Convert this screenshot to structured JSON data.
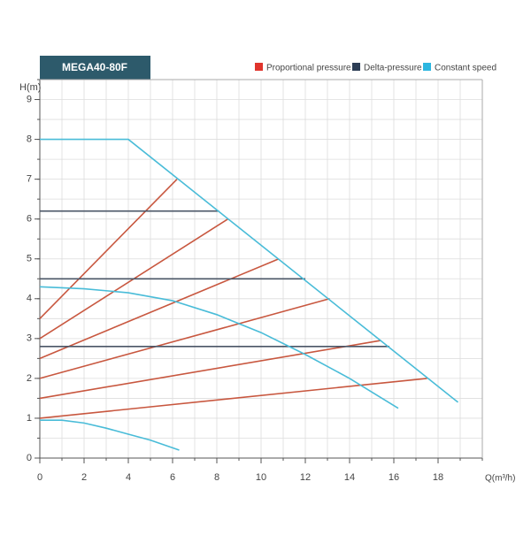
{
  "chart_data": {
    "type": "line",
    "title": "MEGA40-80F",
    "x_label": "Q(m³/h)",
    "y_label": "H(m)",
    "xlim": [
      0,
      20
    ],
    "ylim": [
      0,
      9.5
    ],
    "xticks": [
      0,
      2,
      4,
      6,
      8,
      10,
      12,
      14,
      16,
      18
    ],
    "yticks": [
      0,
      1,
      2,
      3,
      4,
      5,
      6,
      7,
      8,
      9
    ],
    "xgrid": [
      1,
      2,
      3,
      4,
      5,
      6,
      7,
      8,
      9,
      10,
      11,
      12,
      13,
      14,
      15,
      16,
      17,
      18,
      19,
      20
    ],
    "ygrid": [
      0.5,
      1,
      1.5,
      2,
      2.5,
      3,
      3.5,
      4,
      4.5,
      5,
      5.5,
      6,
      6.5,
      7,
      7.5,
      8,
      8.5,
      9,
      9.5
    ],
    "legend": [
      {
        "name": "Proportional pressure",
        "color": "#e0342c"
      },
      {
        "name": "Delta-pressure",
        "color": "#2c3d55"
      },
      {
        "name": "Constant speed",
        "color": "#2cb6e0"
      }
    ],
    "series": [
      {
        "color": "#c8573f",
        "x": [
          0,
          6.2
        ],
        "values": [
          3.5,
          7.0
        ]
      },
      {
        "color": "#c8573f",
        "x": [
          0,
          8.5
        ],
        "values": [
          3.0,
          6.0
        ]
      },
      {
        "color": "#c8573f",
        "x": [
          0,
          10.8
        ],
        "values": [
          2.5,
          5.0
        ]
      },
      {
        "color": "#c8573f",
        "x": [
          0,
          13.1
        ],
        "values": [
          2.0,
          4.0
        ]
      },
      {
        "color": "#c8573f",
        "x": [
          0,
          15.4
        ],
        "values": [
          1.5,
          2.95
        ]
      },
      {
        "color": "#c8573f",
        "x": [
          0,
          17.5
        ],
        "values": [
          1.0,
          2.0
        ]
      },
      {
        "color": "#4a5566",
        "x": [
          0,
          8.1
        ],
        "values": [
          6.2,
          6.2
        ]
      },
      {
        "color": "#4a5566",
        "x": [
          0,
          12
        ],
        "values": [
          4.5,
          4.5
        ]
      },
      {
        "color": "#4a5566",
        "x": [
          0,
          15.8
        ],
        "values": [
          2.8,
          2.8
        ]
      },
      {
        "color": "#49bcd8",
        "x": [
          0,
          4,
          18.9
        ],
        "values": [
          8,
          8,
          1.4
        ]
      },
      {
        "color": "#49bcd8",
        "x": [
          0,
          2,
          4,
          6,
          8,
          10,
          12,
          14,
          16.2
        ],
        "values": [
          4.3,
          4.25,
          4.15,
          3.95,
          3.6,
          3.15,
          2.6,
          2.0,
          1.25
        ]
      },
      {
        "color": "#49bcd8",
        "x": [
          0,
          1,
          2,
          3,
          4,
          5,
          6.3
        ],
        "values": [
          0.95,
          0.95,
          0.88,
          0.75,
          0.6,
          0.45,
          0.2
        ]
      }
    ]
  }
}
